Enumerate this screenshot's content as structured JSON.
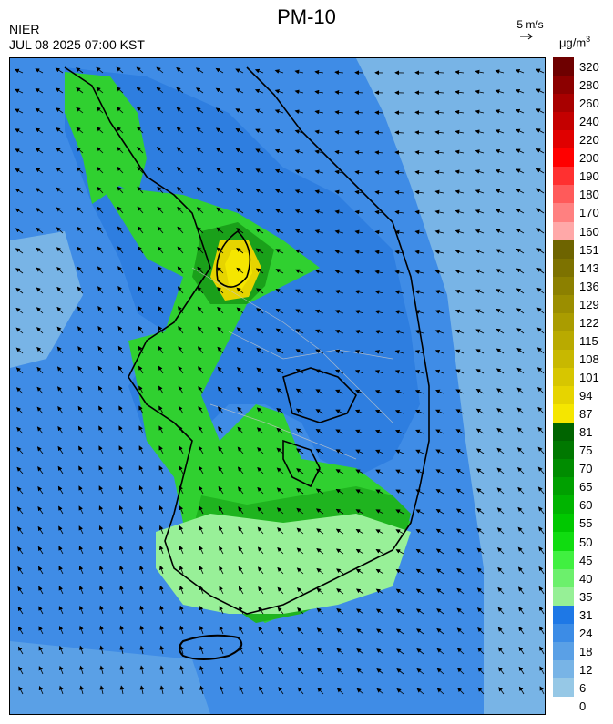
{
  "header": {
    "title": "PM-10",
    "agency": "NIER",
    "datetime": "JUL 08 2025 07:00 KST",
    "wind_reference": "5 m/s",
    "unit": "μg/m",
    "unit_sup": "3"
  },
  "legend": {
    "labels": [
      "320",
      "280",
      "260",
      "240",
      "220",
      "200",
      "190",
      "180",
      "170",
      "160",
      "151",
      "143",
      "136",
      "129",
      "122",
      "115",
      "108",
      "101",
      "94",
      "87",
      "81",
      "75",
      "70",
      "65",
      "60",
      "55",
      "50",
      "45",
      "40",
      "35",
      "31",
      "24",
      "18",
      "12",
      "6",
      "0"
    ],
    "colors": [
      "#6e0000",
      "#8c0000",
      "#a80000",
      "#c40000",
      "#e00000",
      "#ff0000",
      "#ff3030",
      "#ff5a5a",
      "#ff8080",
      "#ffa8a8",
      "#6e6400",
      "#7d7200",
      "#8c8000",
      "#9b8e00",
      "#aa9c00",
      "#b9aa00",
      "#c8b800",
      "#d7c600",
      "#e6d400",
      "#f5e600",
      "#006400",
      "#007800",
      "#008c00",
      "#00a000",
      "#00b400",
      "#00c800",
      "#10dc10",
      "#40f040",
      "#6cf06c",
      "#96f096",
      "#1e78e6",
      "#3c8ce6",
      "#5aa0e6",
      "#78b4e6",
      "#96c8e6"
    ]
  },
  "map": {
    "region": "Korean Peninsula"
  }
}
